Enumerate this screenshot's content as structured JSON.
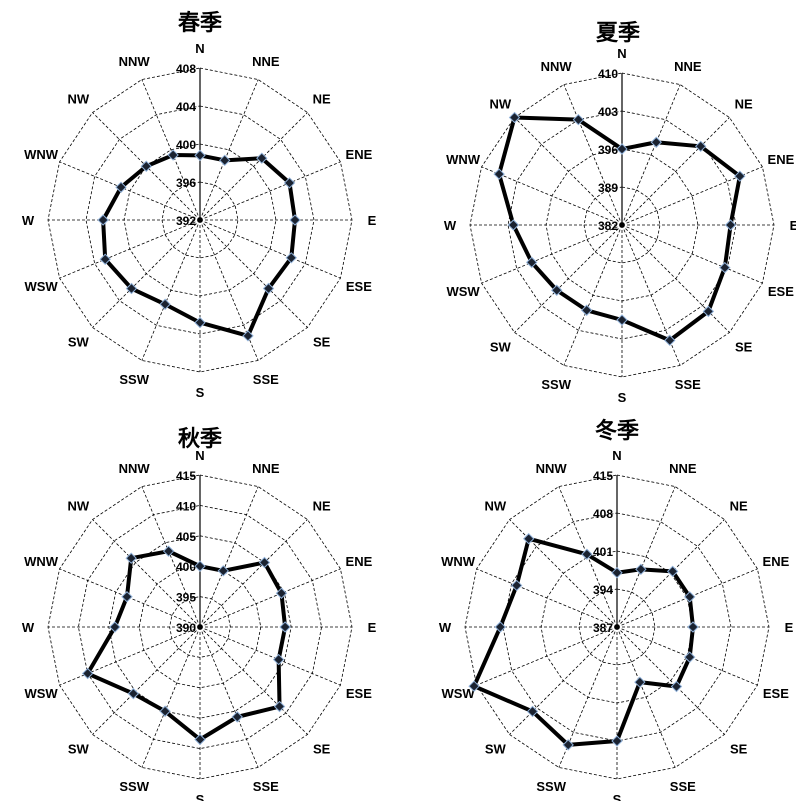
{
  "colors": {
    "line": "#000000",
    "marker": "#1a2230",
    "marker_edge": "#8fb0d8",
    "grid": "#000000"
  },
  "chart_data": [
    {
      "type": "radar",
      "title": "春季",
      "categories": [
        "N",
        "NNE",
        "NE",
        "ENE",
        "E",
        "ESE",
        "SE",
        "SSE",
        "S",
        "SSW",
        "SW",
        "WSW",
        "W",
        "WNW",
        "NW",
        "NNW"
      ],
      "values": [
        398.8,
        398.8,
        401.2,
        402.2,
        402.0,
        402.4,
        402.2,
        405.2,
        402.8,
        401.6,
        402.2,
        402.8,
        402.2,
        401.0,
        400.0,
        399.4
      ],
      "rlim": [
        392,
        408
      ],
      "rticks": [
        392,
        396,
        400,
        404,
        408
      ],
      "grid": true
    },
    {
      "type": "radar",
      "title": "夏季",
      "categories": [
        "N",
        "NNE",
        "NE",
        "ENE",
        "E",
        "ESE",
        "SE",
        "SSE",
        "S",
        "SSW",
        "SW",
        "WSW",
        "W",
        "WNW",
        "NW",
        "NNW"
      ],
      "values": [
        396.0,
        398.5,
        402.5,
        405.5,
        402.0,
        402.5,
        404.5,
        405.0,
        399.5,
        399.0,
        399.0,
        400.0,
        402.0,
        406.5,
        410.0,
        403.0
      ],
      "rlim": [
        382,
        410
      ],
      "rticks": [
        382,
        389,
        396,
        403,
        410
      ],
      "grid": true
    },
    {
      "type": "radar",
      "title": "秋季",
      "categories": [
        "N",
        "NNE",
        "NE",
        "ENE",
        "E",
        "ESE",
        "SE",
        "SSE",
        "S",
        "SSW",
        "SW",
        "WSW",
        "W",
        "WNW",
        "NW",
        "NNW"
      ],
      "values": [
        400.0,
        400.0,
        405.0,
        404.5,
        404.0,
        404.0,
        408.5,
        406.0,
        408.5,
        405.0,
        405.5,
        410.0,
        404.0,
        403.0,
        406.0,
        403.5
      ],
      "rlim": [
        390,
        415
      ],
      "rticks": [
        390,
        395,
        400,
        405,
        410,
        415
      ],
      "grid": true
    },
    {
      "type": "radar",
      "title": "冬季",
      "categories": [
        "N",
        "NNE",
        "NE",
        "ENE",
        "E",
        "ESE",
        "SE",
        "SSE",
        "S",
        "SSW",
        "SW",
        "WSW",
        "W",
        "WNW",
        "NW",
        "NNW"
      ],
      "values": [
        397.0,
        398.5,
        401.5,
        401.5,
        401.0,
        401.5,
        402.5,
        398.0,
        408.0,
        410.5,
        409.0,
        415.5,
        408.5,
        407.0,
        410.0,
        401.5
      ],
      "rlim": [
        387,
        415
      ],
      "rticks": [
        387,
        394,
        401,
        408,
        415
      ],
      "grid": true
    }
  ]
}
